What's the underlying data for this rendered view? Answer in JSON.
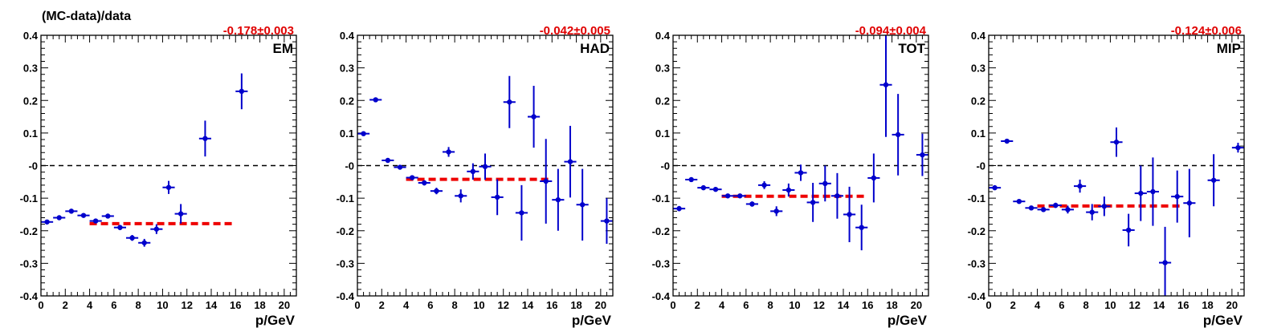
{
  "ylabel": "(MC-data)/data",
  "colors": {
    "points": "#0000cc",
    "fit": "#ee0000",
    "zero_line": "#000000",
    "frame": "#000000"
  },
  "chart_data": [
    {
      "type": "scatter",
      "panel_label": "EM",
      "fit_text": "-0.178±0.003",
      "xlabel": "p/GeV",
      "ylabel": "(MC-data)/data",
      "xlim": [
        0,
        21
      ],
      "ylim": [
        -0.4,
        0.4
      ],
      "x_ticks": [
        "0",
        "2",
        "4",
        "6",
        "8",
        "10",
        "12",
        "14",
        "16",
        "18",
        "20"
      ],
      "y_ticks": [
        "-0.4",
        "-0.3",
        "-0.2",
        "-0.1",
        "-0",
        "0.1",
        "0.2",
        "0.3",
        "0.4"
      ],
      "zero_line": 0,
      "fit": {
        "x_range": [
          4,
          16
        ],
        "value": -0.178
      },
      "points": [
        {
          "x": 0.5,
          "y": -0.173,
          "err": 0.006
        },
        {
          "x": 1.5,
          "y": -0.16,
          "err": 0.005
        },
        {
          "x": 2.5,
          "y": -0.14,
          "err": 0.005
        },
        {
          "x": 3.5,
          "y": -0.153,
          "err": 0.006
        },
        {
          "x": 4.5,
          "y": -0.17,
          "err": 0.007
        },
        {
          "x": 5.5,
          "y": -0.155,
          "err": 0.007
        },
        {
          "x": 6.5,
          "y": -0.19,
          "err": 0.008
        },
        {
          "x": 7.5,
          "y": -0.222,
          "err": 0.009
        },
        {
          "x": 8.5,
          "y": -0.237,
          "err": 0.012
        },
        {
          "x": 9.5,
          "y": -0.195,
          "err": 0.015
        },
        {
          "x": 10.5,
          "y": -0.067,
          "err": 0.02
        },
        {
          "x": 11.5,
          "y": -0.148,
          "err": 0.03
        },
        {
          "x": 13.5,
          "y": 0.083,
          "err": 0.055
        },
        {
          "x": 16.5,
          "y": 0.228,
          "err": 0.055
        }
      ]
    },
    {
      "type": "scatter",
      "panel_label": "HAD",
      "fit_text": "-0.042±0.005",
      "xlabel": "p/GeV",
      "ylabel": "",
      "xlim": [
        0,
        21
      ],
      "ylim": [
        -0.4,
        0.4
      ],
      "x_ticks": [
        "0",
        "2",
        "4",
        "6",
        "8",
        "10",
        "12",
        "14",
        "16",
        "18",
        "20"
      ],
      "y_ticks": [
        "-0.4",
        "-0.3",
        "-0.2",
        "-0.1",
        "-0",
        "0.1",
        "0.2",
        "0.3",
        "0.4"
      ],
      "zero_line": 0,
      "fit": {
        "x_range": [
          4,
          16
        ],
        "value": -0.042
      },
      "points": [
        {
          "x": 0.5,
          "y": 0.098,
          "err": 0.006
        },
        {
          "x": 1.5,
          "y": 0.202,
          "err": 0.005
        },
        {
          "x": 2.5,
          "y": 0.016,
          "err": 0.006
        },
        {
          "x": 3.5,
          "y": -0.005,
          "err": 0.006
        },
        {
          "x": 4.5,
          "y": -0.037,
          "err": 0.007
        },
        {
          "x": 5.5,
          "y": -0.053,
          "err": 0.008
        },
        {
          "x": 6.5,
          "y": -0.078,
          "err": 0.01
        },
        {
          "x": 7.5,
          "y": 0.042,
          "err": 0.015
        },
        {
          "x": 8.5,
          "y": -0.093,
          "err": 0.02
        },
        {
          "x": 9.5,
          "y": -0.018,
          "err": 0.025
        },
        {
          "x": 10.5,
          "y": -0.003,
          "err": 0.04
        },
        {
          "x": 11.5,
          "y": -0.097,
          "err": 0.055
        },
        {
          "x": 12.5,
          "y": 0.195,
          "err": 0.08
        },
        {
          "x": 13.5,
          "y": -0.145,
          "err": 0.085
        },
        {
          "x": 14.5,
          "y": 0.15,
          "err": 0.095
        },
        {
          "x": 15.5,
          "y": -0.048,
          "err": 0.13
        },
        {
          "x": 16.5,
          "y": -0.105,
          "err": 0.095
        },
        {
          "x": 17.5,
          "y": 0.012,
          "err": 0.11
        },
        {
          "x": 18.5,
          "y": -0.12,
          "err": 0.11
        },
        {
          "x": 20.5,
          "y": -0.17,
          "err": 0.07
        }
      ]
    },
    {
      "type": "scatter",
      "panel_label": "TOT",
      "fit_text": "-0.094±0.004",
      "xlabel": "p/GeV",
      "ylabel": "",
      "xlim": [
        0,
        21
      ],
      "ylim": [
        -0.4,
        0.4
      ],
      "x_ticks": [
        "0",
        "2",
        "4",
        "6",
        "8",
        "10",
        "12",
        "14",
        "16",
        "18",
        "20"
      ],
      "y_ticks": [
        "-0.4",
        "-0.3",
        "-0.2",
        "-0.1",
        "-0",
        "0.1",
        "0.2",
        "0.3",
        "0.4"
      ],
      "zero_line": 0,
      "fit": {
        "x_range": [
          4,
          16
        ],
        "value": -0.094
      },
      "points": [
        {
          "x": 0.5,
          "y": -0.132,
          "err": 0.008
        },
        {
          "x": 1.5,
          "y": -0.043,
          "err": 0.005
        },
        {
          "x": 2.5,
          "y": -0.068,
          "err": 0.005
        },
        {
          "x": 3.5,
          "y": -0.073,
          "err": 0.005
        },
        {
          "x": 4.5,
          "y": -0.093,
          "err": 0.006
        },
        {
          "x": 5.5,
          "y": -0.093,
          "err": 0.006
        },
        {
          "x": 6.5,
          "y": -0.118,
          "err": 0.008
        },
        {
          "x": 7.5,
          "y": -0.06,
          "err": 0.012
        },
        {
          "x": 8.5,
          "y": -0.14,
          "err": 0.015
        },
        {
          "x": 9.5,
          "y": -0.075,
          "err": 0.02
        },
        {
          "x": 10.5,
          "y": -0.022,
          "err": 0.025
        },
        {
          "x": 11.5,
          "y": -0.113,
          "err": 0.06
        },
        {
          "x": 12.5,
          "y": -0.055,
          "err": 0.055
        },
        {
          "x": 13.5,
          "y": -0.093,
          "err": 0.07
        },
        {
          "x": 14.5,
          "y": -0.15,
          "err": 0.085
        },
        {
          "x": 15.5,
          "y": -0.19,
          "err": 0.07
        },
        {
          "x": 16.5,
          "y": -0.038,
          "err": 0.075
        },
        {
          "x": 17.5,
          "y": 0.248,
          "err": 0.16
        },
        {
          "x": 18.5,
          "y": 0.095,
          "err": 0.125
        },
        {
          "x": 20.5,
          "y": 0.033,
          "err": 0.065
        }
      ]
    },
    {
      "type": "scatter",
      "panel_label": "MIP",
      "fit_text": "-0.124±0.006",
      "xlabel": "p/GeV",
      "ylabel": "",
      "xlim": [
        0,
        21
      ],
      "ylim": [
        -0.4,
        0.4
      ],
      "x_ticks": [
        "0",
        "2",
        "4",
        "6",
        "8",
        "10",
        "12",
        "14",
        "16",
        "18",
        "20"
      ],
      "y_ticks": [
        "-0.4",
        "-0.3",
        "-0.2",
        "-0.1",
        "-0",
        "0.1",
        "0.2",
        "0.3",
        "0.4"
      ],
      "zero_line": 0,
      "fit": {
        "x_range": [
          4,
          16
        ],
        "value": -0.124
      },
      "points": [
        {
          "x": 0.5,
          "y": -0.068,
          "err": 0.007
        },
        {
          "x": 1.5,
          "y": 0.075,
          "err": 0.005
        },
        {
          "x": 2.5,
          "y": -0.11,
          "err": 0.005
        },
        {
          "x": 3.5,
          "y": -0.13,
          "err": 0.006
        },
        {
          "x": 4.5,
          "y": -0.135,
          "err": 0.007
        },
        {
          "x": 5.5,
          "y": -0.122,
          "err": 0.008
        },
        {
          "x": 6.5,
          "y": -0.135,
          "err": 0.012
        },
        {
          "x": 7.5,
          "y": -0.063,
          "err": 0.02
        },
        {
          "x": 8.5,
          "y": -0.143,
          "err": 0.025
        },
        {
          "x": 9.5,
          "y": -0.125,
          "err": 0.03
        },
        {
          "x": 10.5,
          "y": 0.072,
          "err": 0.045
        },
        {
          "x": 11.5,
          "y": -0.198,
          "err": 0.05
        },
        {
          "x": 12.5,
          "y": -0.085,
          "err": 0.085
        },
        {
          "x": 13.5,
          "y": -0.08,
          "err": 0.105
        },
        {
          "x": 14.5,
          "y": -0.298,
          "err": 0.11
        },
        {
          "x": 15.5,
          "y": -0.095,
          "err": 0.08
        },
        {
          "x": 16.5,
          "y": -0.115,
          "err": 0.105
        },
        {
          "x": 18.5,
          "y": -0.045,
          "err": 0.08
        },
        {
          "x": 20.5,
          "y": 0.055,
          "err": 0.015
        }
      ]
    }
  ]
}
